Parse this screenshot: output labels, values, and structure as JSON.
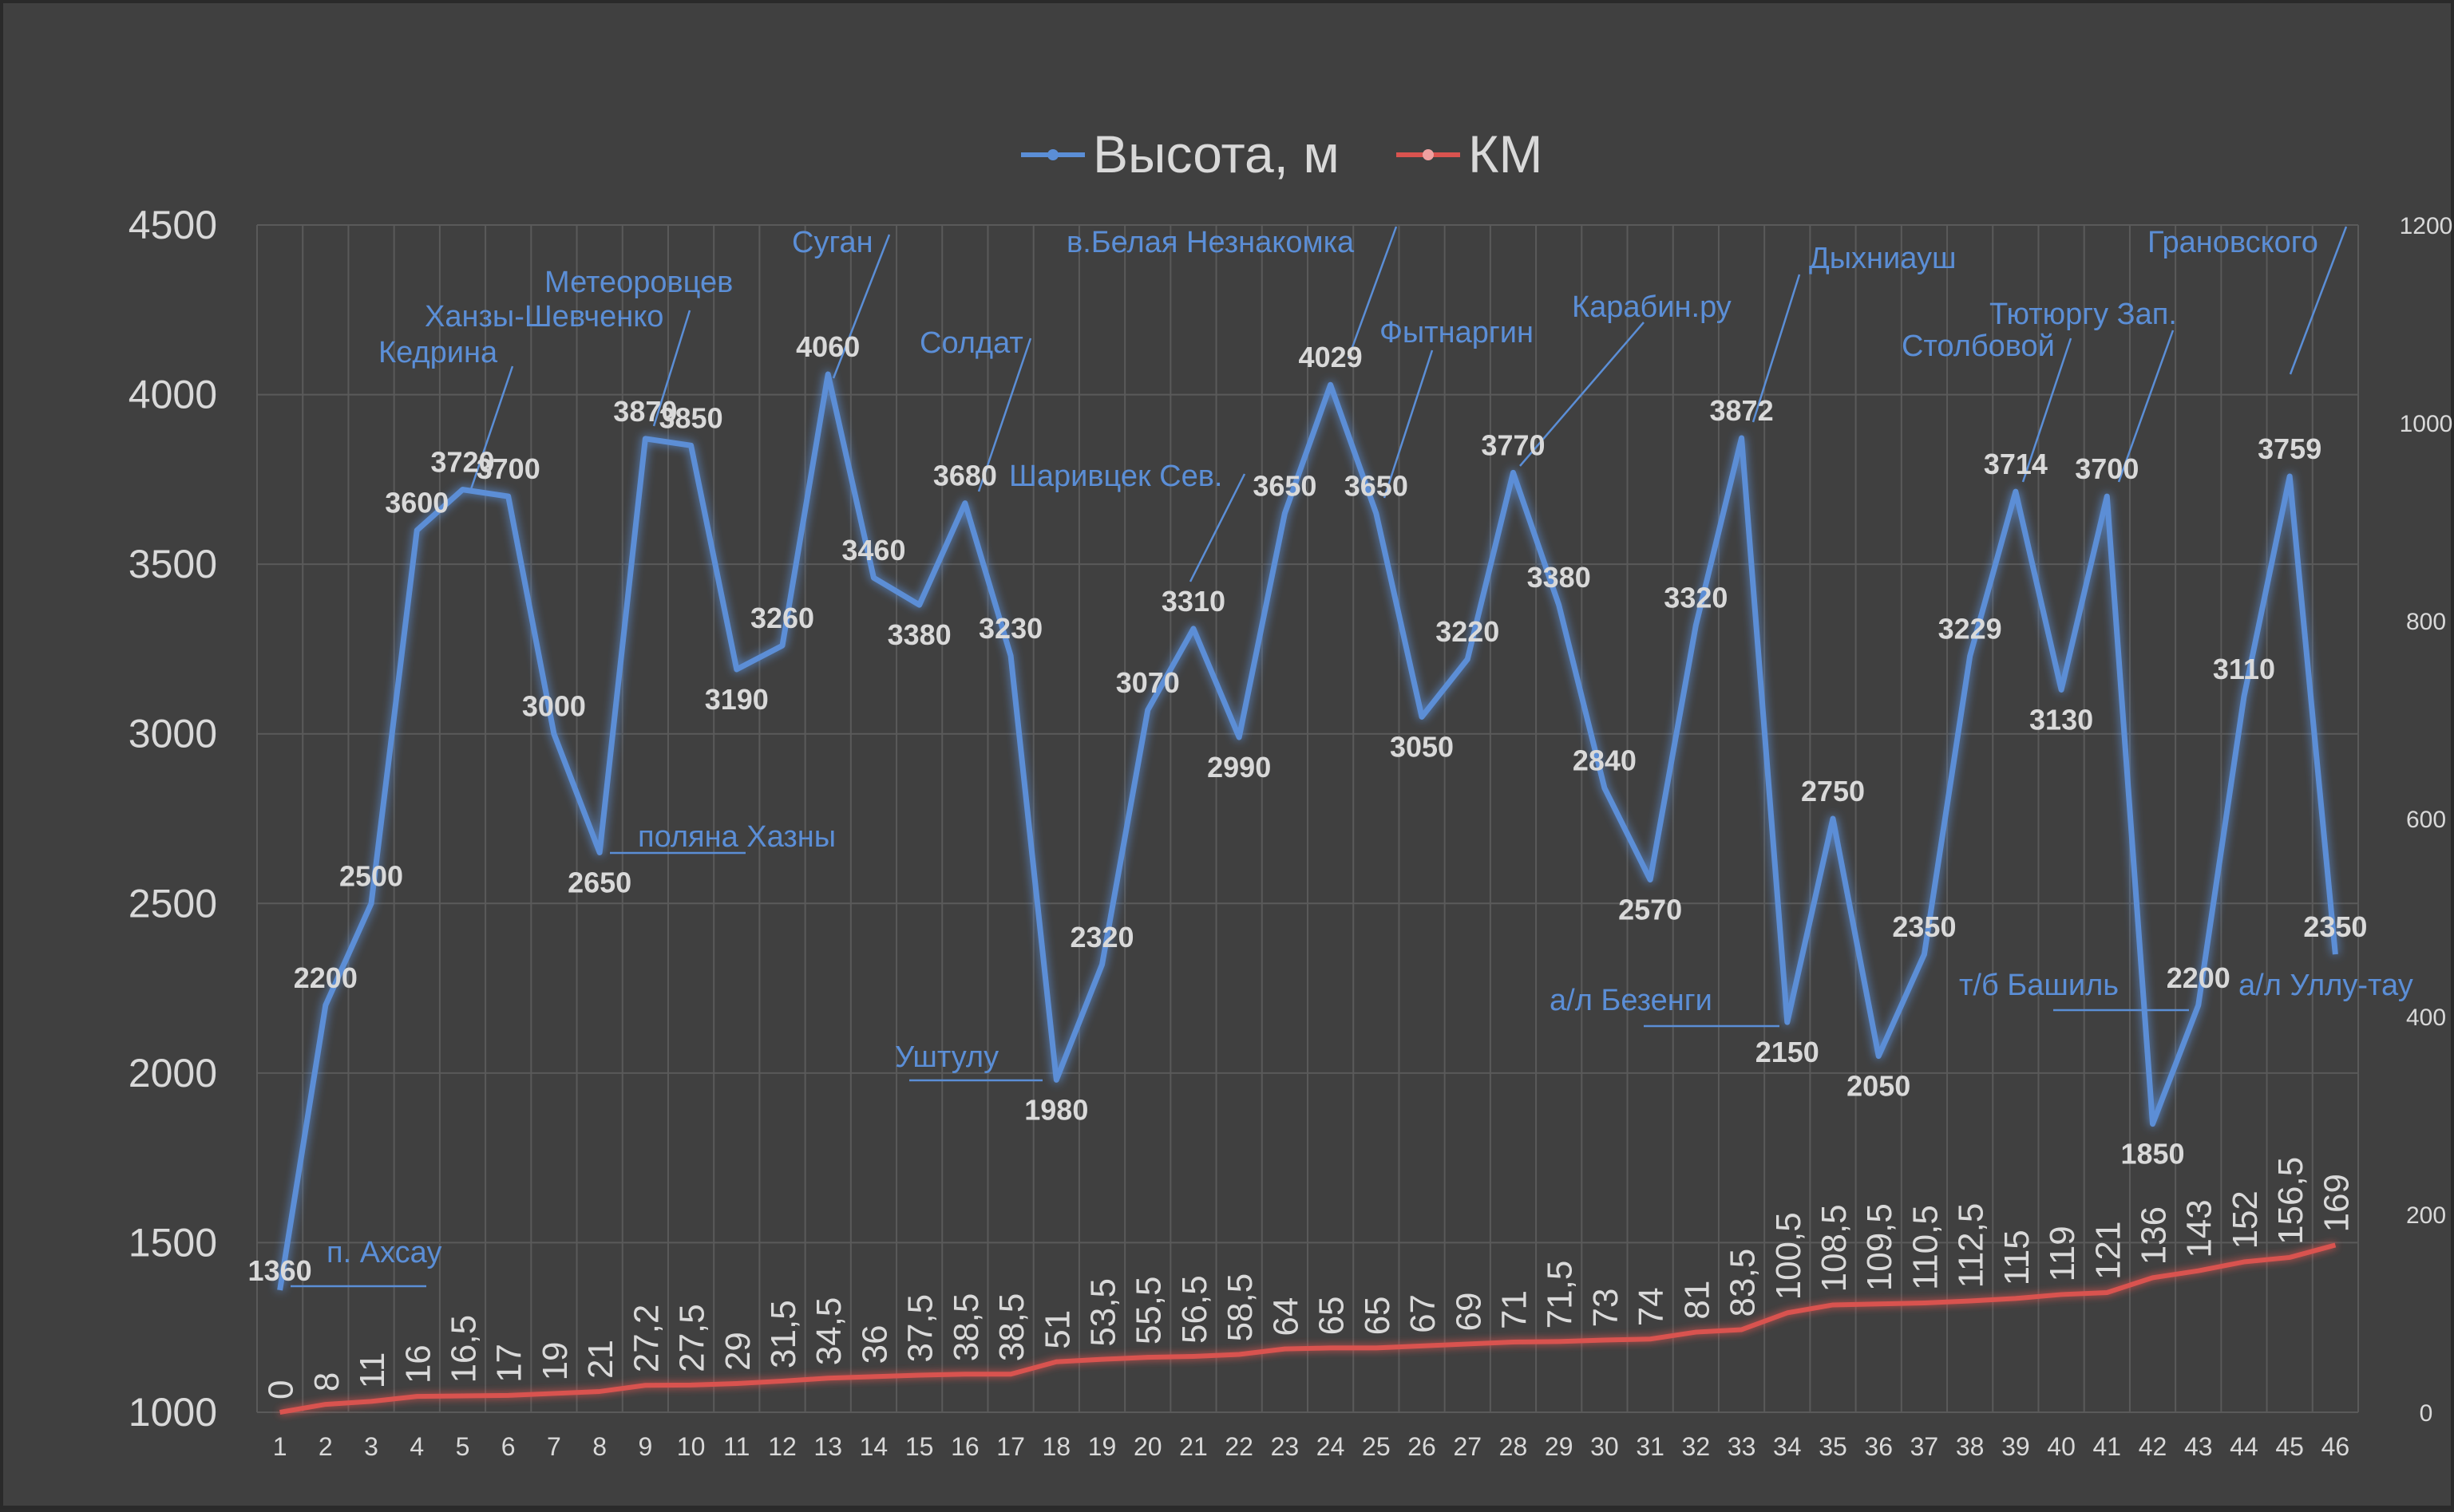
{
  "chart_data": {
    "type": "line",
    "title": "",
    "legend": {
      "position": "top",
      "entries": [
        "Высота, м",
        "КМ"
      ]
    },
    "categories": [
      "1",
      "2",
      "3",
      "4",
      "5",
      "6",
      "7",
      "8",
      "9",
      "10",
      "11",
      "12",
      "13",
      "14",
      "15",
      "16",
      "17",
      "18",
      "19",
      "20",
      "21",
      "22",
      "23",
      "24",
      "25",
      "26",
      "27",
      "28",
      "29",
      "30",
      "31",
      "32",
      "33",
      "34",
      "35",
      "36",
      "37",
      "38",
      "39",
      "40",
      "41",
      "42",
      "43",
      "44",
      "45",
      "46"
    ],
    "y_left": {
      "ylim": [
        1000,
        4500
      ],
      "ticks": [
        "1000",
        "1500",
        "2000",
        "2500",
        "3000",
        "3500",
        "4000",
        "4500"
      ]
    },
    "y_right": {
      "ylim": [
        0,
        1200
      ],
      "ticks": [
        "0",
        "200",
        "400",
        "600",
        "800",
        "1000",
        "1200"
      ]
    },
    "grid": true,
    "series": [
      {
        "name": "Высота, м",
        "axis": "left",
        "color": "#5b8ed6",
        "values": [
          1360,
          2200,
          2500,
          3600,
          3720,
          3700,
          3000,
          2650,
          3870,
          3850,
          3190,
          3260,
          4060,
          3460,
          3380,
          3680,
          3230,
          1980,
          2320,
          3070,
          3310,
          2990,
          3650,
          4029,
          3650,
          3050,
          3220,
          3770,
          3380,
          2840,
          2570,
          3320,
          3872,
          2150,
          2750,
          2050,
          2350,
          3229,
          3714,
          3130,
          3700,
          1850,
          2200,
          3110,
          3759,
          2350
        ],
        "labels": [
          "1360",
          "2200",
          "2500",
          "3600",
          "3720",
          "3700",
          "3000",
          "2650",
          "3870",
          "3850",
          "3190",
          "3260",
          "4060",
          "3460",
          "3380",
          "3680",
          "3230",
          "1980",
          "2320",
          "3070",
          "3310",
          "2990",
          "3650",
          "4029",
          "3650",
          "3050",
          "3220",
          "3770",
          "3380",
          "2840",
          "2570",
          "3320",
          "3872",
          "2150",
          "2750",
          "2050",
          "2350",
          "3229",
          "3714",
          "3130",
          "3700",
          "1850",
          "2200",
          "3110",
          "3759",
          "2350"
        ]
      },
      {
        "name": "КМ",
        "axis": "right",
        "color": "#d9534f",
        "values": [
          0,
          8,
          11,
          16,
          16.5,
          17,
          19,
          21,
          27.2,
          27.5,
          29,
          31.5,
          34.5,
          36,
          37.5,
          38.5,
          38.5,
          51,
          53.5,
          55.5,
          56.5,
          58.5,
          64,
          65,
          65,
          67,
          69,
          71,
          71.5,
          73,
          74,
          81,
          83.5,
          100.5,
          108.5,
          109.5,
          110.5,
          112.5,
          115,
          119,
          121,
          136,
          143,
          152,
          156.5,
          169
        ],
        "labels": [
          "0",
          "8",
          "11",
          "16",
          "16,5",
          "17",
          "19",
          "21",
          "27,2",
          "27,5",
          "29",
          "31,5",
          "34,5",
          "36",
          "37,5",
          "38,5",
          "38,5",
          "51",
          "53,5",
          "55,5",
          "56,5",
          "58,5",
          "64",
          "65",
          "65",
          "67",
          "69",
          "71",
          "71,5",
          "73",
          "74",
          "81",
          "83,5",
          "100,5",
          "108,5",
          "109,5",
          "110,5",
          "112,5",
          "115",
          "119",
          "121",
          "136",
          "143",
          "152",
          "156,5",
          "169"
        ]
      }
    ],
    "annotations": [
      {
        "text": "п. Ахсау",
        "point": 1
      },
      {
        "text": "Кедрина",
        "point": 5
      },
      {
        "text": "Ханзы-Шевченко",
        "point": 5
      },
      {
        "text": "Метеоровцев",
        "point": 9
      },
      {
        "text": "поляна Хазны",
        "point": 8
      },
      {
        "text": "Суган",
        "point": 13
      },
      {
        "text": "Солдат",
        "point": 16
      },
      {
        "text": "Уштулу",
        "point": 18
      },
      {
        "text": "в.Белая Незнакомка",
        "point": 24
      },
      {
        "text": "Шаривцек Сев.",
        "point": 21
      },
      {
        "text": "Фытнаргин",
        "point": 25
      },
      {
        "text": "Карабин.ру",
        "point": 28
      },
      {
        "text": "Дыхниауш",
        "point": 33
      },
      {
        "text": "а/л Безенги",
        "point": 34
      },
      {
        "text": "Столбовой",
        "point": 39
      },
      {
        "text": "Тютюргу Зап.",
        "point": 41
      },
      {
        "text": "т/б Башиль",
        "point": 43
      },
      {
        "text": "Грановского",
        "point": 45
      },
      {
        "text": "а/л Уллу-тау",
        "point": 46
      }
    ]
  }
}
